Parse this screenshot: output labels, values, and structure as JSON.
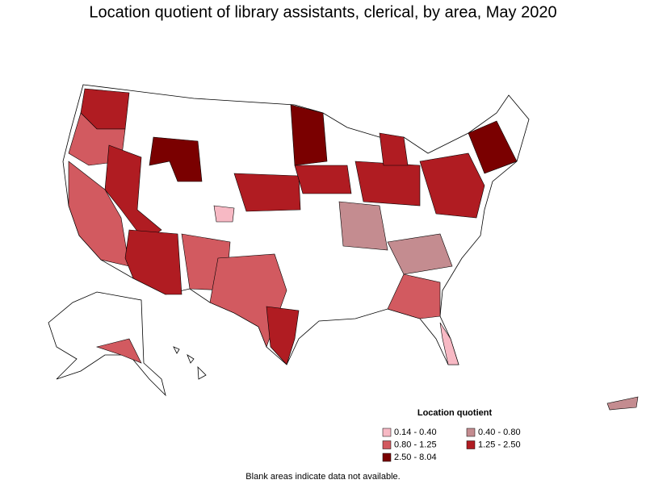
{
  "title": "Location quotient of library assistants, clerical, by area, May 2020",
  "legend": {
    "title": "Location quotient",
    "items": [
      {
        "label": "0.14 - 0.40",
        "color": "#f7b9c4"
      },
      {
        "label": "0.40 - 0.80",
        "color": "#c48c90"
      },
      {
        "label": "0.80 - 1.25",
        "color": "#d25a60"
      },
      {
        "label": "1.25 - 2.50",
        "color": "#b01c22"
      },
      {
        "label": "2.50 - 8.04",
        "color": "#7a0000"
      }
    ]
  },
  "footnote": "Blank areas indicate data not available."
}
